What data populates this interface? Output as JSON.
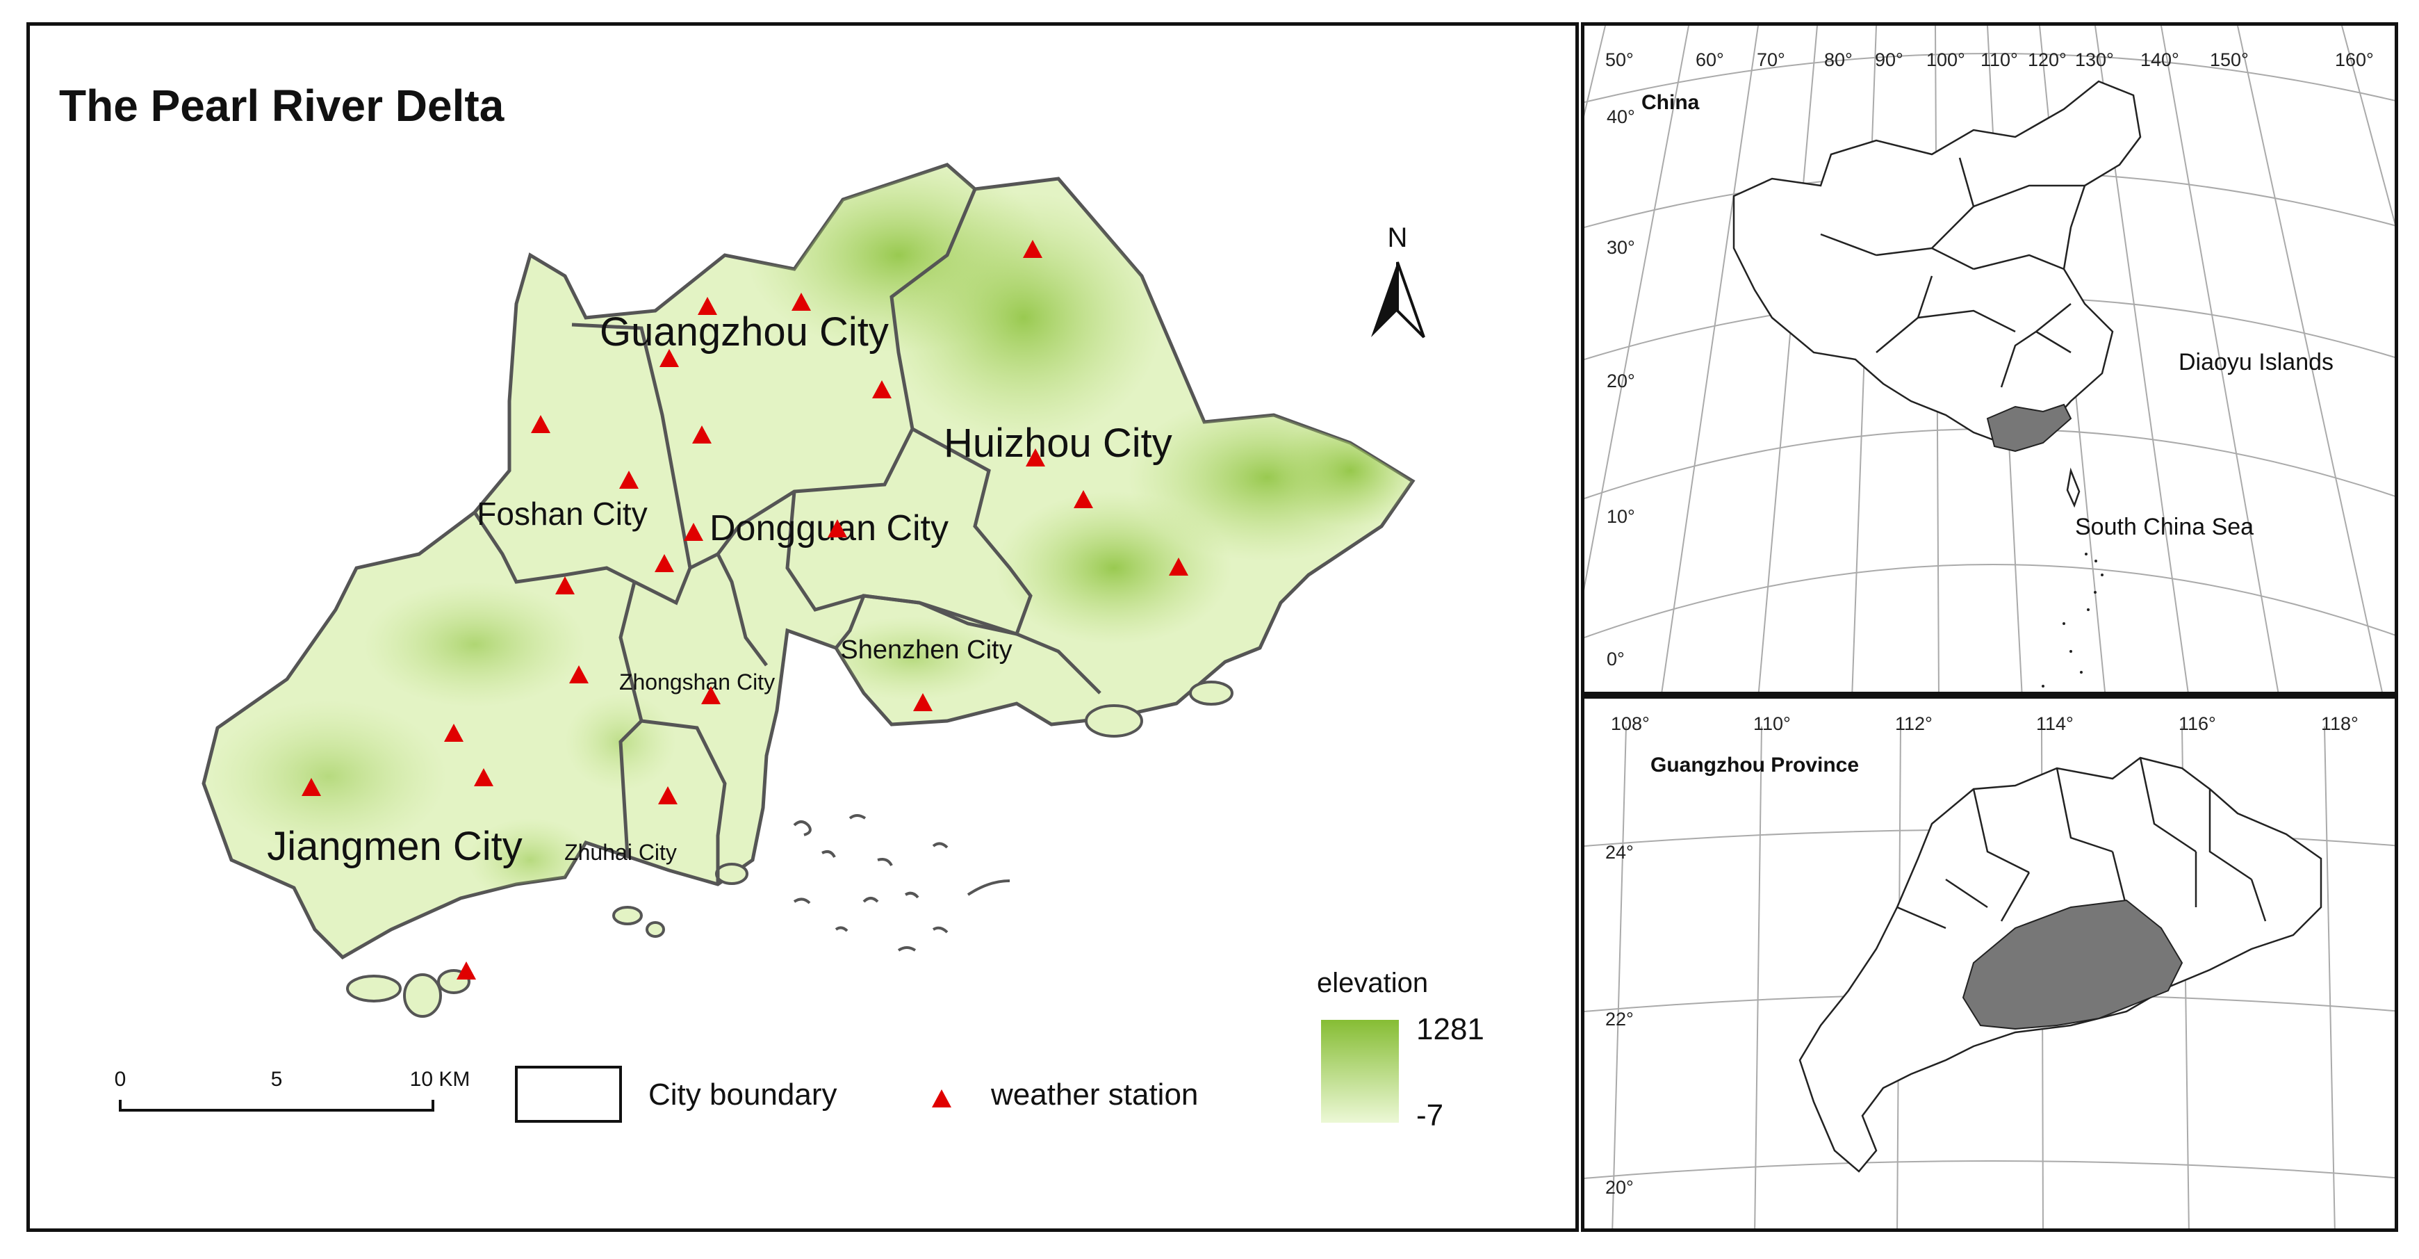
{
  "main_map": {
    "title": "The Pearl River Delta",
    "north_label": "N",
    "cities": [
      {
        "label": "Guangzhou City"
      },
      {
        "label": "Huizhou City"
      },
      {
        "label": "Foshan City"
      },
      {
        "label": "Dongguan City"
      },
      {
        "label": "Shenzhen City"
      },
      {
        "label": "Zhongshan City"
      },
      {
        "label": "Jiangmen City"
      },
      {
        "label": "Zhuhai City"
      }
    ],
    "legend": {
      "elevation_title": "elevation",
      "elevation_max": "1281",
      "elevation_min": "-7",
      "boundary_label": "City boundary",
      "station_label": "weather station"
    },
    "scale_bar": {
      "tick_0": "0",
      "tick_5": "5",
      "tick_10": "10 KM"
    },
    "colors": {
      "land_low": "#e6f5c8",
      "land_high": "#86bd34",
      "station": "#e00000",
      "boundary": "#555555"
    }
  },
  "china_inset": {
    "title": "China",
    "labels": {
      "diaoyu": "Diaoyu Islands",
      "south_sea": "South China Sea"
    },
    "lon_labels": [
      "50°",
      "60°",
      "70°",
      "80°",
      "90°",
      "100°",
      "110°",
      "120°",
      "130°",
      "140°",
      "150°",
      "160°"
    ],
    "lat_labels": [
      "40°",
      "30°",
      "20°",
      "10°",
      "0°"
    ],
    "highlight_color": "#777777"
  },
  "province_inset": {
    "title": "Guangzhou Province",
    "lon_labels": [
      "108°",
      "110°",
      "112°",
      "114°",
      "116°",
      "118°"
    ],
    "lat_labels": [
      "24°",
      "22°",
      "20°"
    ],
    "highlight_color": "#777777"
  }
}
